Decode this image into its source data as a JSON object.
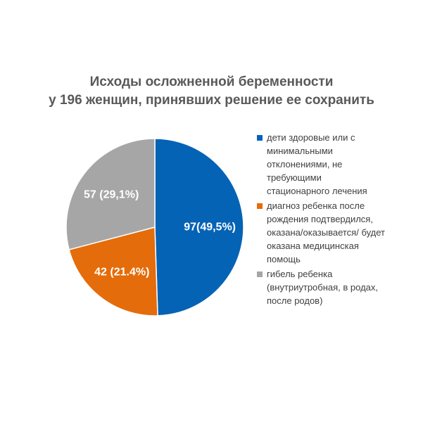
{
  "chart_data": {
    "type": "pie",
    "title": "Исходы осложненной беременности\nу 196 женщин, принявших решение ее сохранить",
    "total": 196,
    "categories": [
      "дети здоровые или с минимальными отклонениями, не требующими стационарного лечения",
      "диагноз ребенка после рождения подтвердился, оказана/оказывается/ будет оказана медицинская помощь",
      "гибель ребенка (внутриутробная, в родах, после родов)"
    ],
    "values": [
      97,
      42,
      57
    ],
    "data_labels": [
      "97(49,5%)",
      "42 (21.4%)",
      "57 (29,1%)"
    ],
    "colors": [
      "#0563B6",
      "#E46C0A",
      "#A6A6A6"
    ],
    "legend_position": "right",
    "start_angle": "12 o'clock, clockwise"
  },
  "title_lines": [
    "Исходы осложненной беременности",
    "у 196 женщин, принявших решение ее сохранить"
  ],
  "legend": [
    {
      "label": "дети здоровые или с\nминимальными\nотклонениями, не\nтребующими\nстационарного лечения"
    },
    {
      "label": "диагноз ребенка после\nрождения подтвердился,\nоказана/оказывается/ будет\nоказана медицинская\nпомощь"
    },
    {
      "label": "гибель ребенка\n(внутриутробная, в родах,\nпосле родов)"
    }
  ]
}
